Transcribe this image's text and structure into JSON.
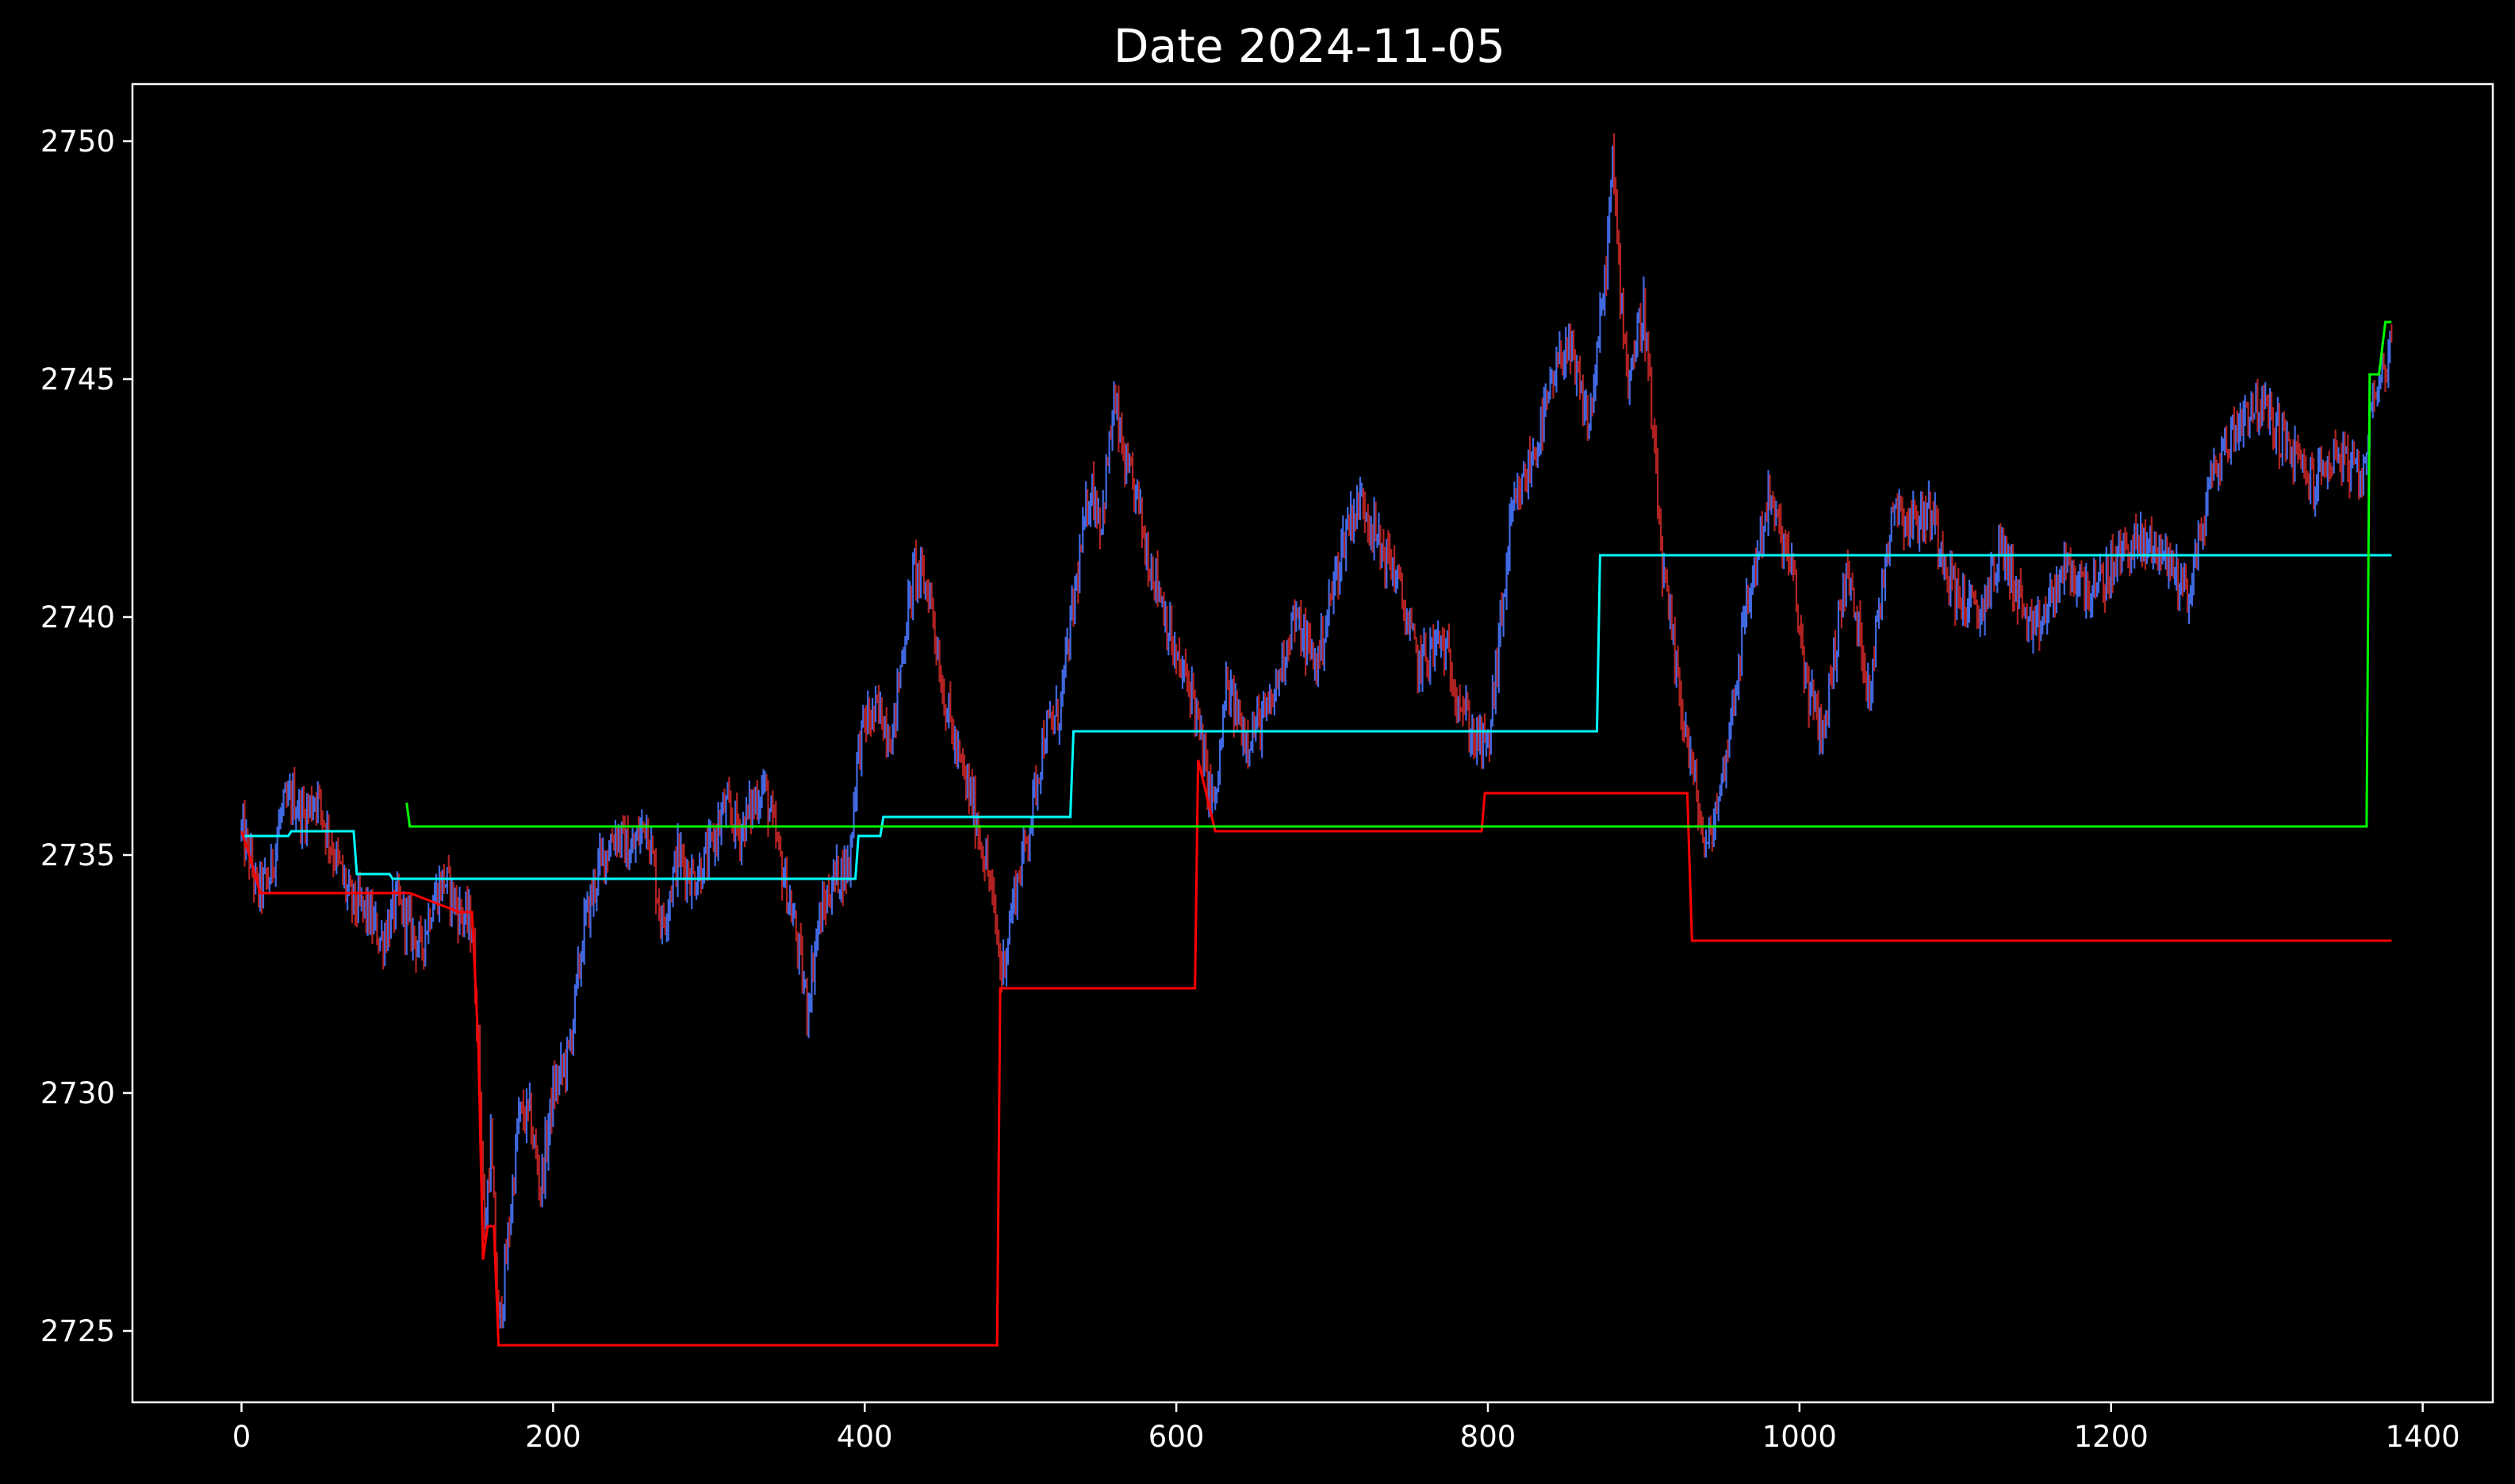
{
  "chart_data": {
    "type": "line",
    "title": "Date 2024-11-05",
    "xlabel": "",
    "ylabel": "",
    "xlim": [
      -70,
      1445
    ],
    "ylim": [
      2723.5,
      2751.2
    ],
    "xticks": [
      0,
      200,
      400,
      600,
      800,
      1000,
      1200,
      1400
    ],
    "yticks": [
      2725,
      2730,
      2735,
      2740,
      2745,
      2750
    ],
    "grid": false,
    "background": "#000000",
    "axes_color": "#ffffff",
    "colors": {
      "price_up": "#4169e1",
      "price_down": "#b22222",
      "red_level": "#ff0000",
      "cyan_level": "#00ffff",
      "green_level": "#00ff00"
    },
    "series": [
      {
        "role": "price",
        "x": [
          0,
          5,
          10,
          18,
          25,
          33,
          40,
          48,
          55,
          62,
          70,
          80,
          90,
          100,
          108,
          115,
          122,
          130,
          140,
          148,
          152,
          156,
          160,
          165,
          170,
          178,
          185,
          192,
          200,
          210,
          220,
          230,
          240,
          250,
          260,
          270,
          280,
          290,
          300,
          310,
          320,
          335,
          345,
          355,
          363,
          370,
          380,
          390,
          395,
          400,
          410,
          418,
          425,
          432,
          442,
          450,
          460,
          470,
          480,
          488,
          495,
          505,
          515,
          525,
          535,
          545,
          552,
          560,
          568,
          575,
          580,
          590,
          600,
          610,
          620,
          625,
          632,
          645,
          660,
          675,
          690,
          700,
          710,
          720,
          730,
          740,
          755,
          770,
          790,
          800,
          815,
          830,
          850,
          865,
          875,
          880,
          885,
          890,
          900,
          912,
          920,
          930,
          940,
          950,
          965,
          980,
          995,
          1005,
          1015,
          1030,
          1045,
          1060,
          1070,
          1085,
          1100,
          1115,
          1130,
          1150,
          1170,
          1190,
          1210,
          1230,
          1250,
          1265,
          1280,
          1290,
          1300,
          1315,
          1330,
          1345,
          1360,
          1370,
          1380
        ],
        "values": [
          2735.5,
          2735.0,
          2734.2,
          2734.5,
          2735.8,
          2736.2,
          2735.8,
          2736.3,
          2735.5,
          2734.8,
          2734.0,
          2733.8,
          2733.2,
          2734.0,
          2733.5,
          2733.0,
          2734.0,
          2734.5,
          2733.8,
          2733.5,
          2731.0,
          2727.0,
          2729.0,
          2725.0,
          2726.5,
          2729.5,
          2729.5,
          2728.0,
          2730.0,
          2730.8,
          2733.5,
          2734.8,
          2735.5,
          2735.0,
          2735.8,
          2733.5,
          2735.0,
          2734.5,
          2735.0,
          2736.0,
          2735.5,
          2736.5,
          2735.0,
          2733.5,
          2731.8,
          2733.5,
          2734.5,
          2734.8,
          2737.0,
          2737.8,
          2738.0,
          2737.5,
          2739.5,
          2741.0,
          2740.5,
          2738.5,
          2737.0,
          2736.0,
          2734.5,
          2732.5,
          2734.0,
          2735.5,
          2737.5,
          2738.0,
          2740.5,
          2742.8,
          2742.0,
          2744.5,
          2743.0,
          2742.5,
          2741.5,
          2740.5,
          2739.0,
          2738.5,
          2736.5,
          2736.0,
          2738.5,
          2737.5,
          2738.0,
          2740.0,
          2739.0,
          2740.5,
          2742.0,
          2742.5,
          2741.5,
          2741.0,
          2739.0,
          2739.5,
          2737.5,
          2737.2,
          2742.0,
          2743.5,
          2745.8,
          2744.0,
          2747.0,
          2749.5,
          2747.0,
          2745.0,
          2746.5,
          2741.0,
          2739.0,
          2737.0,
          2735.0,
          2736.5,
          2740.0,
          2742.5,
          2741.0,
          2738.5,
          2737.5,
          2741.0,
          2738.5,
          2742.5,
          2742.0,
          2742.2,
          2740.5,
          2740.0,
          2741.5,
          2739.5,
          2741.0,
          2740.5,
          2741.5,
          2741.5,
          2740.5,
          2743.0,
          2744.0,
          2744.5,
          2744.3,
          2743.5,
          2742.8,
          2743.5,
          2742.8,
          2745.0,
          2745.5
        ]
      },
      {
        "role": "red_level",
        "x": [
          0,
          5,
          12,
          108,
          140,
          148,
          152,
          155,
          158,
          162,
          165,
          485,
          487,
          612,
          614,
          625,
          627,
          796,
          798,
          928,
          931,
          1380
        ],
        "values": [
          2735.5,
          2735.0,
          2734.2,
          2734.2,
          2733.8,
          2733.8,
          2731.0,
          2726.5,
          2727.2,
          2727.2,
          2724.7,
          2724.7,
          2732.2,
          2732.2,
          2737.0,
          2735.5,
          2735.5,
          2735.5,
          2736.3,
          2736.3,
          2733.2,
          2733.2
        ]
      },
      {
        "role": "cyan_level",
        "x": [
          2,
          30,
          32,
          72,
          74,
          95,
          97,
          394,
          396,
          410,
          412,
          532,
          534,
          870,
          872,
          1380
        ],
        "values": [
          2735.4,
          2735.4,
          2735.5,
          2735.5,
          2734.6,
          2734.6,
          2734.5,
          2734.5,
          2735.4,
          2735.4,
          2735.8,
          2735.8,
          2737.6,
          2737.6,
          2741.3,
          2741.3
        ]
      },
      {
        "role": "green_level",
        "x": [
          106,
          108,
          1364,
          1366,
          1372,
          1376,
          1380
        ],
        "values": [
          2736.1,
          2735.6,
          2735.6,
          2745.1,
          2745.1,
          2746.2,
          2746.2
        ]
      }
    ]
  }
}
